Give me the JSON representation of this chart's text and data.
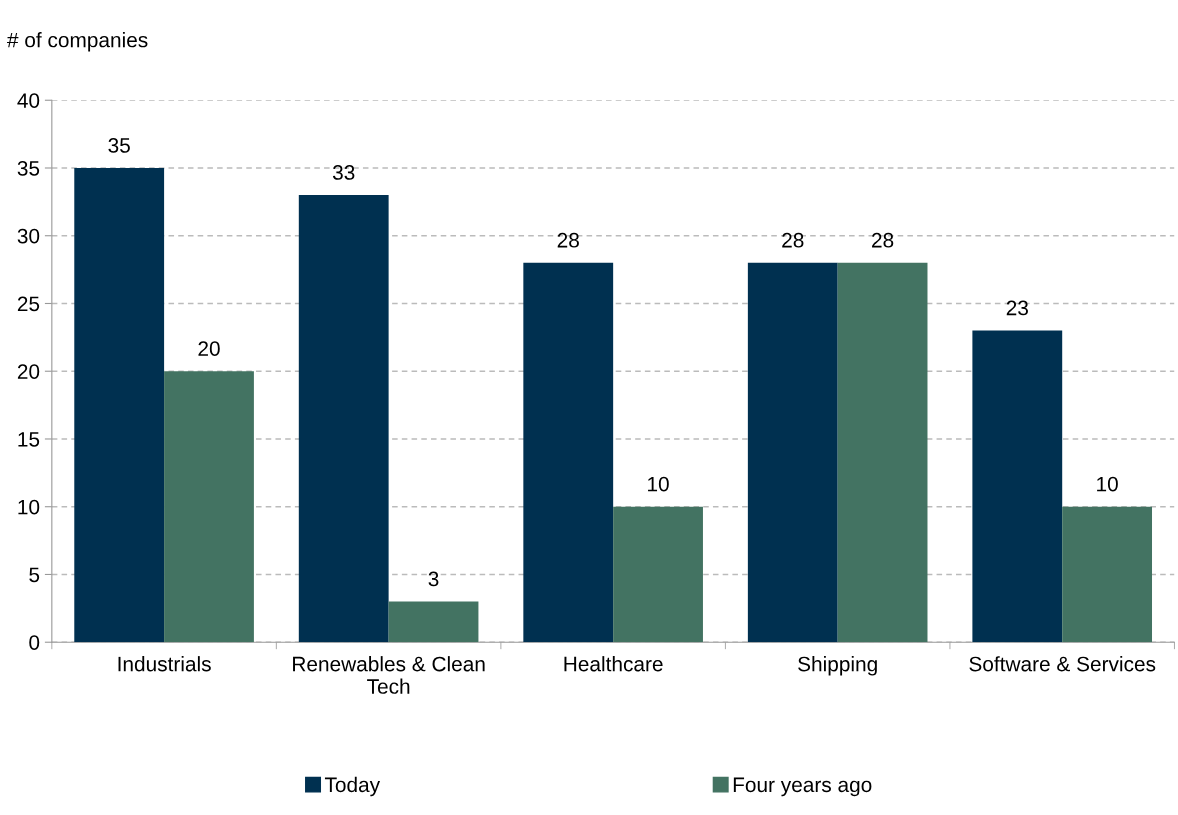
{
  "chart_data": {
    "type": "bar",
    "ylabel": "# of companies",
    "categories": [
      "Industrials",
      "Renewables & Clean\nTech",
      "Healthcare",
      "Shipping",
      "Software & Services"
    ],
    "series": [
      {
        "name": "Today",
        "color": "#003050",
        "values": [
          35,
          33,
          28,
          28,
          23
        ]
      },
      {
        "name": "Four years ago",
        "color": "#437362",
        "values": [
          20,
          3,
          10,
          28,
          10
        ]
      }
    ],
    "ylim": [
      0,
      40
    ],
    "yticks": [
      0,
      5,
      10,
      15,
      20,
      25,
      30,
      35,
      40
    ],
    "grid": "y",
    "legend": "bottom",
    "data_labels": true
  }
}
